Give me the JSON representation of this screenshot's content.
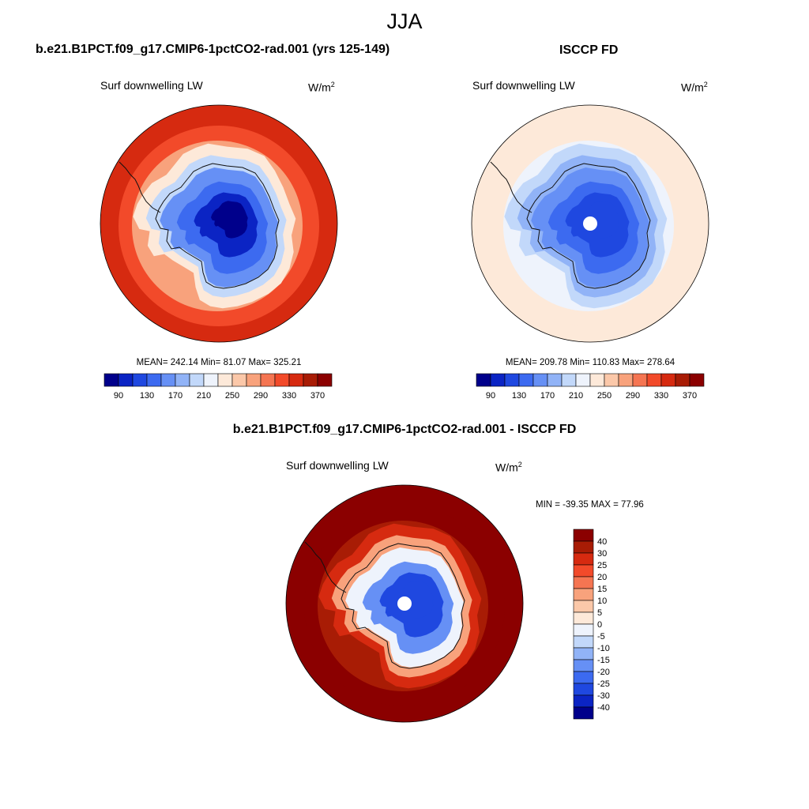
{
  "figure": {
    "title": "JJA"
  },
  "colors": {
    "diverging": [
      "#00008b",
      "#0b24c4",
      "#1f48e0",
      "#3c6af0",
      "#6690f5",
      "#91b3f7",
      "#c2d8fa",
      "#eef3fc",
      "#fde9d9",
      "#fbc8a9",
      "#f8a27c",
      "#f57552",
      "#f24a2a",
      "#d62a10",
      "#a81c05",
      "#8b0000"
    ],
    "coast": "#111111",
    "pole_hole": "#ffffff"
  },
  "panels": [
    {
      "id": "model",
      "title": "b.e21.B1PCT.f09_g17.CMIP6-1pctCO2-rad.001 (yrs 125-149)",
      "variable": "Surf downwelling LW",
      "units_base": "W/m",
      "units_sup": "2",
      "stats": "MEAN= 242.14  Min=  81.07  Max= 325.21",
      "colorbar_labels": [
        "90",
        "130",
        "170",
        "210",
        "250",
        "290",
        "330",
        "370"
      ],
      "level_indices": [
        13,
        12,
        10,
        8,
        6,
        4,
        3,
        1,
        0
      ],
      "pole_hole": false
    },
    {
      "id": "obs",
      "title": "ISCCP FD",
      "variable": "Surf downwelling LW",
      "units_base": "W/m",
      "units_sup": "2",
      "stats": "MEAN= 209.78  Min= 110.83  Max= 278.64",
      "colorbar_labels": [
        "90",
        "130",
        "170",
        "210",
        "250",
        "290",
        "330",
        "370"
      ],
      "level_indices": [
        8,
        8,
        7,
        6,
        5,
        4,
        3,
        2,
        2
      ],
      "pole_hole": true
    },
    {
      "id": "diff",
      "title": "b.e21.B1PCT.f09_g17.CMIP6-1pctCO2-rad.001 - ISCCP FD",
      "variable": "Surf downwelling LW",
      "units_base": "W/m",
      "units_sup": "2",
      "stats": "MIN = -39.35 MAX =  77.96",
      "colorbar_labels": [
        "40",
        "30",
        "25",
        "20",
        "15",
        "10",
        "5",
        "0",
        "-5",
        "-10",
        "-15",
        "-20",
        "-25",
        "-30",
        "-40"
      ],
      "level_indices": [
        15,
        15,
        14,
        13,
        10,
        7,
        4,
        2,
        2
      ],
      "pole_hole": true
    }
  ]
}
